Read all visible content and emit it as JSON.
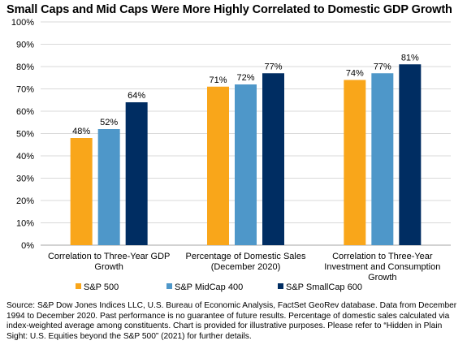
{
  "chart_data": {
    "type": "bar",
    "title": "Small Caps and Mid Caps Were More Highly Correlated to Domestic GDP Growth",
    "categories": [
      [
        "Correlation to Three-Year GDP",
        "Growth"
      ],
      [
        "Percentage of Domestic Sales",
        "(December 2020)"
      ],
      [
        "Correlation to Three-Year",
        "Investment and Consumption",
        "Growth"
      ]
    ],
    "series": [
      {
        "name": "S&P 500",
        "color": "#F9A61A",
        "values": [
          48,
          71,
          74
        ],
        "labels": [
          "48%",
          "71%",
          "74%"
        ]
      },
      {
        "name": "S&P MidCap 400",
        "color": "#4E97C9",
        "values": [
          52,
          72,
          77
        ],
        "labels": [
          "52%",
          "72%",
          "77%"
        ]
      },
      {
        "name": "S&P SmallCap 600",
        "color": "#002D62",
        "values": [
          64,
          77,
          81
        ],
        "labels": [
          "64%",
          "77%",
          "81%"
        ]
      }
    ],
    "ylim": [
      0,
      100
    ],
    "yticks": [
      0,
      10,
      20,
      30,
      40,
      50,
      60,
      70,
      80,
      90,
      100
    ],
    "ytick_labels": [
      "0%",
      "10%",
      "20%",
      "30%",
      "40%",
      "50%",
      "60%",
      "70%",
      "80%",
      "90%",
      "100%"
    ],
    "grid": true,
    "legend_position": "bottom"
  },
  "source_note": "Source: S&P Dow Jones Indices LLC, U.S. Bureau of Economic Analysis, FactSet GeoRev database.  Data from December 1994 to December 2020.  Past performance is no guarantee of future results.  Percentage of domestic sales calculated via index-weighted average among constituents.  Chart is provided for illustrative purposes. Please refer to “Hidden in Plain Sight: U.S. Equities beyond the S&P 500” (2021) for further details.",
  "colors": {
    "grid": "#D9D9D9",
    "axis": "#A6A6A6"
  }
}
